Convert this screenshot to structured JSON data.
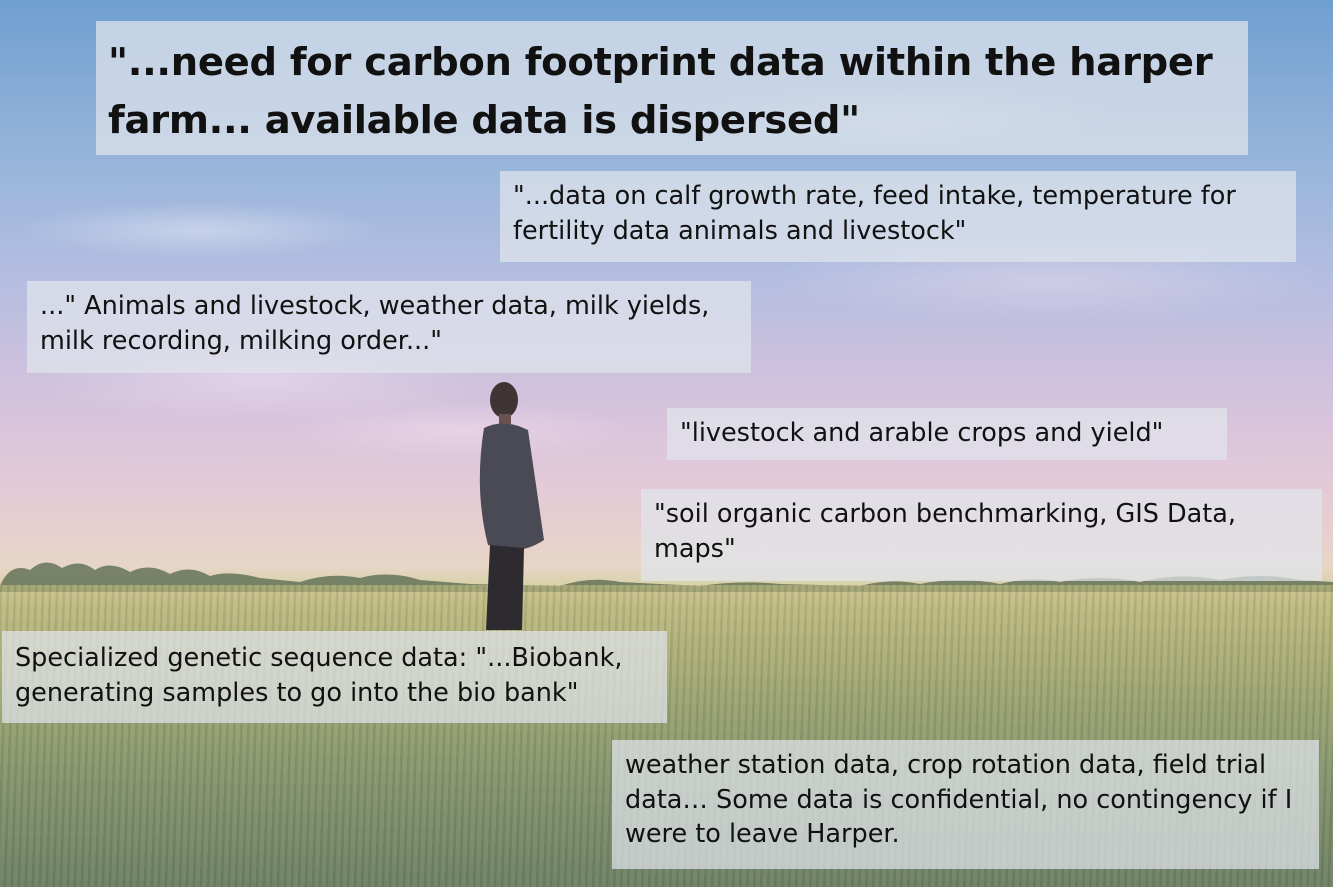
{
  "quotes": {
    "q1": [
      "\"...need for carbon footprint data within the harper",
      "farm... available data is dispersed\""
    ],
    "q2": [
      "\"...data on calf growth rate, feed intake, temperature for",
      "fertility data animals and livestock\""
    ],
    "q3": [
      "...\" Animals and livestock, weather data, milk yields,",
      "milk recording, milking order...\""
    ],
    "q4": [
      "\"livestock and arable crops and yield\""
    ],
    "q5": [
      "\"soil organic carbon benchmarking, GIS Data,",
      "maps\""
    ],
    "q6": [
      "Specialized genetic sequence data: \"...Biobank,",
      "generating samples to go into the bio bank\""
    ],
    "q7": [
      "weather station data, crop rotation data, field trial",
      "data…  Some data is confidential, no contingency if I",
      "were to leave Harper."
    ]
  }
}
